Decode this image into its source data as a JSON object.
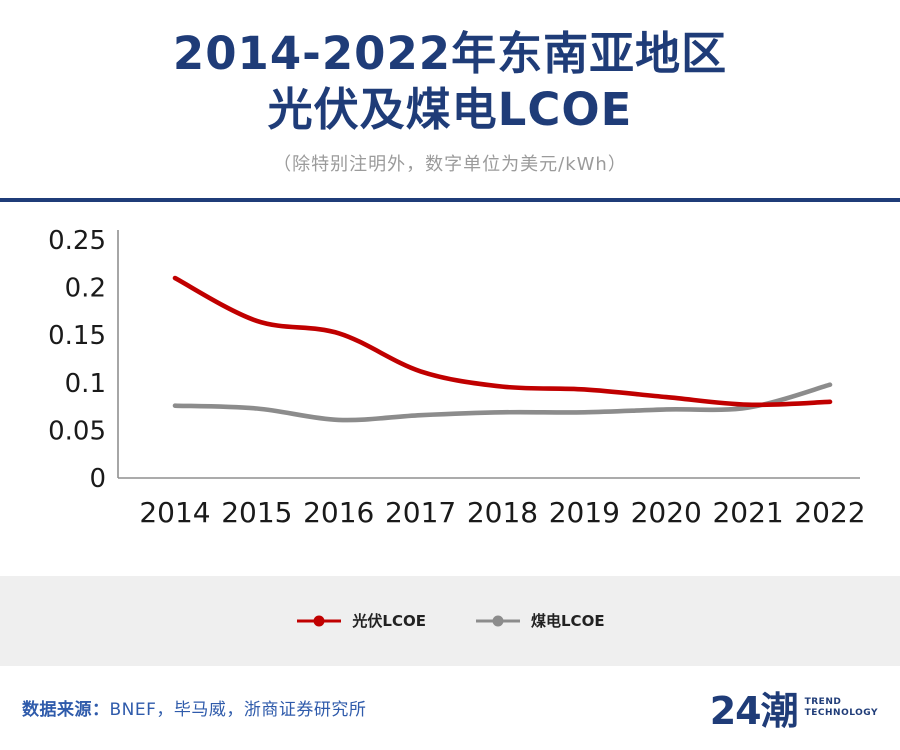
{
  "header": {
    "title_line1": "2014-2022年东南亚地区",
    "title_line2": "光伏及煤电LCOE",
    "subtitle": "（除特别注明外，数字单位为美元/kWh）"
  },
  "chart_data": {
    "type": "line",
    "title": "2014-2022年东南亚地区光伏及煤电LCOE",
    "x": [
      2014,
      2015,
      2016,
      2017,
      2018,
      2019,
      2020,
      2021,
      2022
    ],
    "series": [
      {
        "name": "光伏LCOE",
        "color": "#c00000",
        "values": [
          0.21,
          0.165,
          0.152,
          0.112,
          0.096,
          0.093,
          0.085,
          0.077,
          0.08
        ]
      },
      {
        "name": "煤电LCOE",
        "color": "#8c8c8c",
        "values": [
          0.076,
          0.073,
          0.061,
          0.066,
          0.069,
          0.069,
          0.072,
          0.074,
          0.098
        ]
      }
    ],
    "ylim": [
      0,
      0.25
    ],
    "yticks": [
      0,
      0.05,
      0.1,
      0.15,
      0.2,
      0.25
    ],
    "grid": false,
    "legend_position": "bottom",
    "unit": "美元/kWh"
  },
  "legend": {
    "items": [
      {
        "label": "光伏LCOE",
        "color": "#c00000"
      },
      {
        "label": "煤电LCOE",
        "color": "#8c8c8c"
      }
    ]
  },
  "footer": {
    "source_label": "数据来源：",
    "source_text": "BNEF，毕马威，浙商证券研究所",
    "logo_text": "24潮",
    "logo_sub1": "TREND",
    "logo_sub2": "TECHNOLOGY"
  },
  "colors": {
    "title": "#1f3c78",
    "divider": "#1f3c78",
    "subtitle": "#9b9b9b",
    "footer_text": "#2f5bab",
    "legend_bg": "#efefef",
    "axis_line": "#8f8f8f",
    "axis_label": "#1a1a1a"
  }
}
